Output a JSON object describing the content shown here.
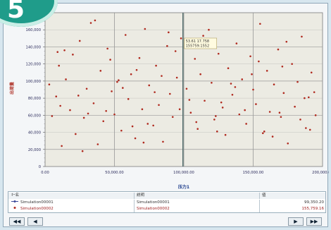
{
  "badge": {
    "number": "5"
  },
  "chart_data": {
    "type": "scatter",
    "title": "",
    "xlabel": "压力1",
    "ylabel": "出荷量",
    "xlim": [
      0,
      200000
    ],
    "ylim": [
      0,
      180000
    ],
    "xticks": [
      "0.00",
      "50,000.00",
      "100,000.00",
      "150,000.00",
      "200,000.00"
    ],
    "yticks": [
      "0",
      "20,000",
      "40,000",
      "60,000",
      "80,000",
      "100,000",
      "120,000",
      "140,000",
      "160,000"
    ],
    "grid": true,
    "marker_color": "#b02a1f",
    "crosshair_x": 99350.2,
    "tooltip": {
      "line1": "53.61 17.758",
      "line2": "155759.1552"
    },
    "series": [
      {
        "x": [
          3000,
          8000,
          10000,
          12000,
          15000,
          18000,
          20000,
          22000,
          25000,
          28000,
          30000,
          33000,
          35000,
          38000,
          40000,
          42000,
          45000,
          48000,
          50000,
          52000,
          55000,
          58000,
          60000,
          62000,
          65000,
          68000,
          70000,
          72000,
          75000,
          78000,
          80000,
          82000,
          85000,
          88000,
          90000,
          92000,
          95000,
          98000,
          102000,
          105000,
          108000,
          110000,
          112000,
          115000,
          118000,
          120000,
          122000,
          125000,
          128000,
          130000,
          132000,
          135000,
          138000,
          140000,
          142000,
          145000,
          148000,
          150000,
          152000,
          155000,
          158000,
          160000,
          162000,
          165000,
          168000,
          170000,
          172000,
          175000,
          178000,
          180000,
          182000,
          185000,
          188000,
          190000,
          192000,
          195000,
          5000,
          14000,
          24000,
          36000,
          44000,
          56000,
          66000,
          74000,
          84000,
          94000,
          104000,
          114000,
          124000,
          134000,
          144000,
          154000,
          164000,
          174000,
          184000,
          194000,
          11000,
          27000,
          47000,
          63000,
          79000,
          97000,
          107000,
          123000,
          137000,
          157000,
          171000,
          187000,
          9000,
          31000,
          53000,
          71000,
          89000,
          109000,
          127000,
          149000,
          169000,
          191000
        ],
        "y": [
          96000,
          82000,
          118000,
          24000,
          102000,
          66000,
          131000,
          38000,
          147000,
          57000,
          91000,
          168000,
          74000,
          26000,
          112000,
          53000,
          138000,
          88000,
          61000,
          99000,
          42000,
          154000,
          79000,
          108000,
          33000,
          127000,
          67000,
          161000,
          95000,
          48000,
          118000,
          72000,
          29000,
          141000,
          85000,
          58000,
          104000,
          150000,
          91000,
          63000,
          126000,
          44000,
          108000,
          77000,
          160000,
          98000,
          55000,
          132000,
          69000,
          37000,
          115000,
          84000,
          144000,
          61000,
          102000,
          50000,
          129000,
          90000,
          73000,
          167000,
          41000,
          112000,
          64000,
          96000,
          137000,
          58000,
          86000,
          27000,
          120000,
          70000,
          99000,
          152000,
          45000,
          81000,
          110000,
          60000,
          59000,
          136000,
          83000,
          171000,
          65000,
          92000,
          113000,
          50000,
          106000,
          135000,
          78000,
          153000,
          41000,
          97000,
          66000,
          123000,
          35000,
          146000,
          55000,
          87000,
          71000,
          18000,
          125000,
          47000,
          87000,
          67000,
          144000,
          59000,
          93000,
          39000,
          117000,
          80000,
          134000,
          62000,
          101000,
          28000,
          157000,
          52000,
          75000,
          108000,
          63000,
          43000
        ]
      }
    ]
  },
  "legend": {
    "headers": [
      "ｷｰ名",
      "説明",
      "値"
    ],
    "rows": [
      {
        "key": "Simulation00001",
        "desc": "Simulation00001",
        "value": "99,350.20"
      },
      {
        "key": "Simulation00002",
        "desc": "Simulation00002",
        "value": "155,759.16"
      }
    ]
  },
  "nav": {
    "first": "◀◀",
    "prev": "◀",
    "next": "▶",
    "last": "▶▶"
  }
}
